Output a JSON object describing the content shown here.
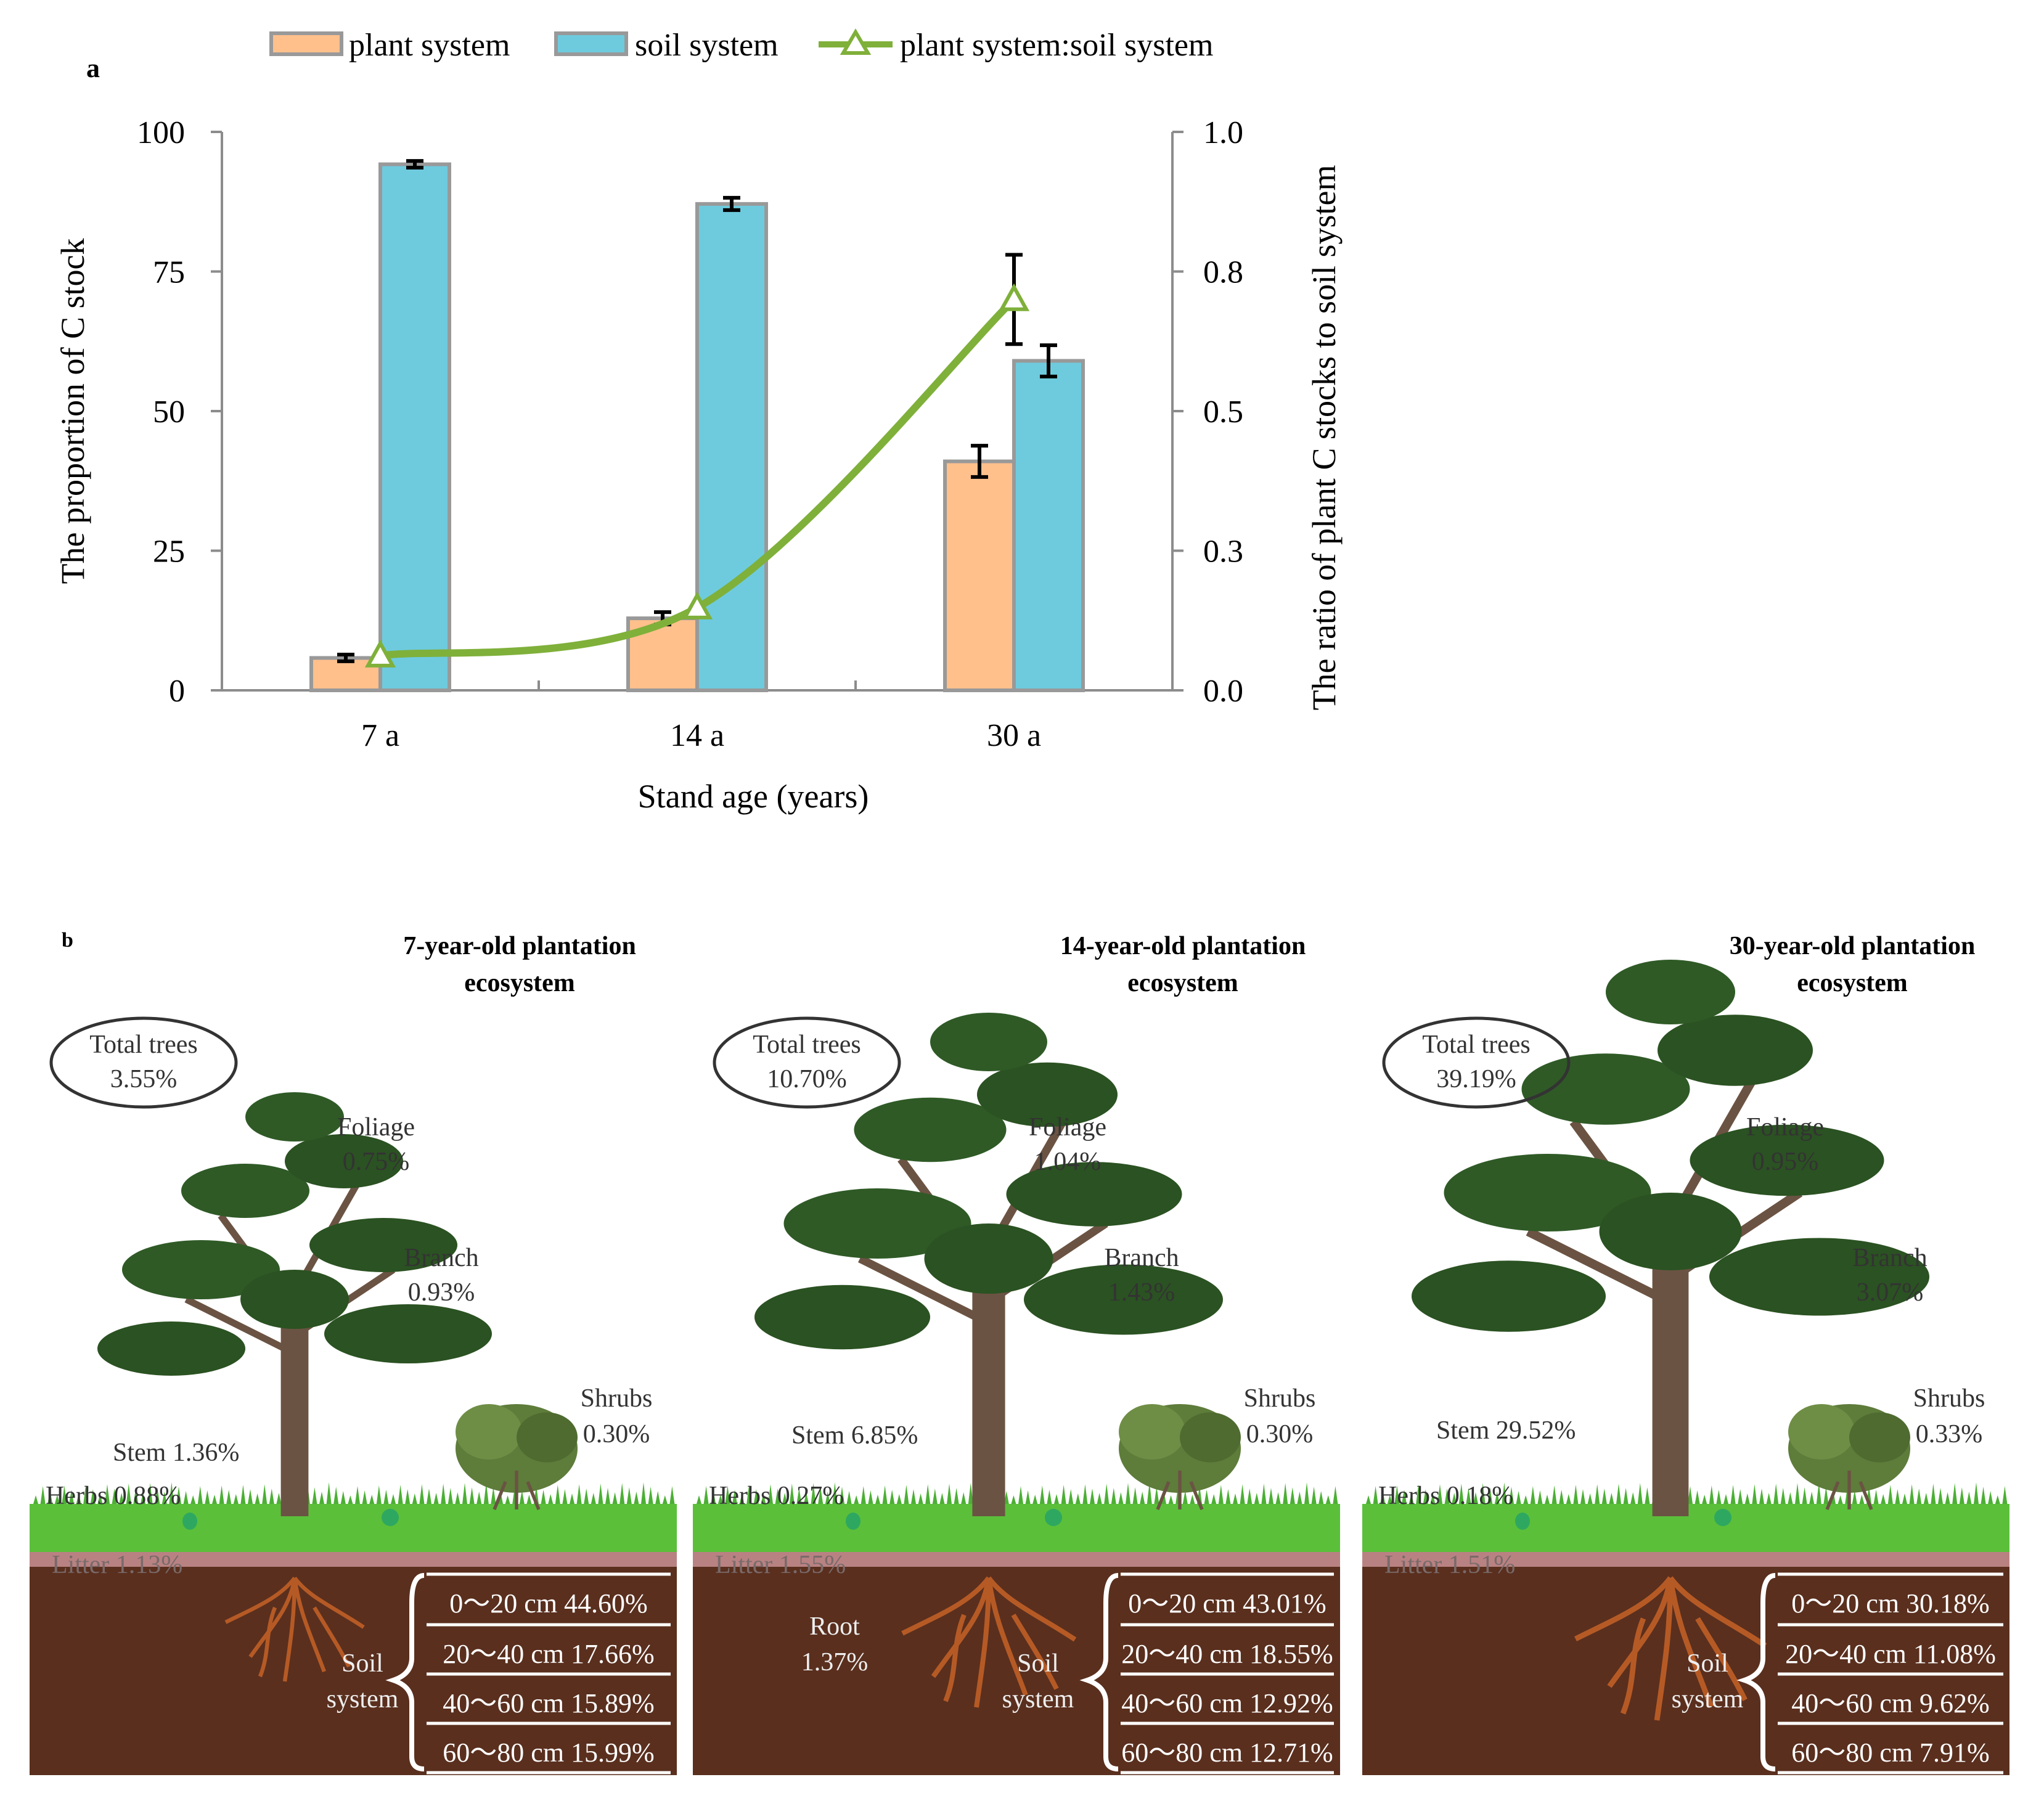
{
  "colors": {
    "plant": "#FFC08C",
    "soil": "#6ECBDE",
    "bar_outline": "#999999",
    "ratio_line": "#7FB03A",
    "error_bar": "#000000",
    "axis": "#8C8C8C",
    "grass": "#5BBF3A",
    "litter": "#B98282",
    "soil_dark": "#5A2F1E",
    "foliage": "#2B5222",
    "trunk": "#6B5343",
    "root": "#B65A25"
  },
  "panel_a": {
    "panel_label": "a",
    "legend": [
      "plant system",
      "soil system",
      "plant system:soil system"
    ],
    "xlabel": "Stand age (years)",
    "ylabel_left": "The proportion of C stock",
    "ylabel_right": "The ratio of plant C stocks to soil system",
    "left_ticks": [
      "0",
      "25",
      "50",
      "75",
      "100"
    ],
    "right_ticks": [
      "0.0",
      "0.3",
      "0.5",
      "0.8",
      "1.0"
    ],
    "categories": [
      "7  a",
      "14 a",
      "30 a"
    ]
  },
  "chart_data": {
    "type": "bar",
    "categories": [
      "7  a",
      "14 a",
      "30 a"
    ],
    "series": [
      {
        "name": "plant system",
        "axis": "left",
        "kind": "bar",
        "values": [
          5.8,
          12.9,
          41.0
        ],
        "errors": [
          0.6,
          1.1,
          2.8
        ]
      },
      {
        "name": "soil system",
        "axis": "left",
        "kind": "bar",
        "values": [
          94.2,
          87.1,
          59.0
        ],
        "errors": [
          0.6,
          1.1,
          2.8
        ]
      },
      {
        "name": "plant system:soil system",
        "axis": "right",
        "kind": "line",
        "values": [
          0.062,
          0.148,
          0.7
        ],
        "errors": [
          0.005,
          0.01,
          0.08
        ]
      }
    ],
    "xlabel": "Stand age (years)",
    "ylabel": "The proportion of C stock",
    "ylabel_right": "The ratio of plant C stocks to soil system",
    "ylim": [
      0,
      100
    ],
    "ylim_right": [
      0,
      1.0
    ],
    "legend_position": "top",
    "grid": false
  },
  "panel_b": {
    "panel_label": "b",
    "ecosystems": [
      {
        "title_line1": "7-year-old plantation",
        "title_line2": "ecosystem",
        "total_label": "Total trees",
        "total_value": "3.55%",
        "foliage_label": "Foliage",
        "foliage_value": "0.75%",
        "branch_label": "Branch",
        "branch_value": "0.93%",
        "shrubs_label": "Shrubs",
        "shrubs_value": "0.30%",
        "stem": "Stem 1.36%",
        "herbs": "Herbs 0.88%",
        "litter": "Litter 1.13%",
        "root_label": "",
        "root_value": "",
        "soil_label_1": "Soil",
        "soil_label_2": "system",
        "layers": [
          "0～20 cm 44.60%",
          "20～40 cm 17.66%",
          "40～60 cm 15.89%",
          "60～80 cm 15.99%"
        ]
      },
      {
        "title_line1": "14-year-old plantation",
        "title_line2": "ecosystem",
        "total_label": "Total trees",
        "total_value": "10.70%",
        "foliage_label": "Foliage",
        "foliage_value": "1.04%",
        "branch_label": "Branch",
        "branch_value": "1.43%",
        "shrubs_label": "Shrubs",
        "shrubs_value": "0.30%",
        "stem": "Stem 6.85%",
        "herbs": "Herbs 0.27%",
        "litter": "Litter 1.55%",
        "root_label": "Root",
        "root_value": "1.37%",
        "soil_label_1": "Soil",
        "soil_label_2": "system",
        "layers": [
          "0～20 cm 43.01%",
          "20～40 cm 18.55%",
          "40～60 cm 12.92%",
          "60～80 cm 12.71%"
        ]
      },
      {
        "title_line1": "30-year-old plantation",
        "title_line2": "ecosystem",
        "total_label": "Total trees",
        "total_value": "39.19%",
        "foliage_label": "Foliage",
        "foliage_value": "0.95%",
        "branch_label": "Branch",
        "branch_value": "3.07%",
        "shrubs_label": "Shrubs",
        "shrubs_value": "0.33%",
        "stem": "Stem 29.52%",
        "herbs": "Herbs 0.18%",
        "litter": "Litter 1.51%",
        "root_label": "",
        "root_value": "",
        "soil_label_1": "Soil",
        "soil_label_2": "system",
        "layers": [
          "0～20 cm 30.18%",
          "20～40 cm 11.08%",
          "40～60 cm 9.62%",
          "60～80 cm 7.91%"
        ]
      }
    ]
  }
}
